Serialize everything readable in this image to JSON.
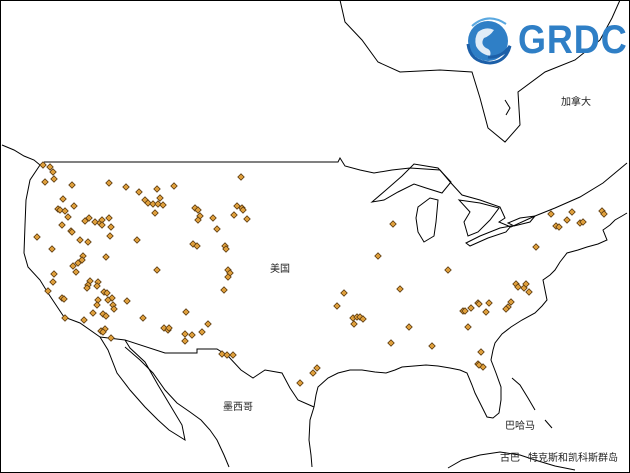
{
  "logo": {
    "text": "GRDC",
    "color": "#2f7fc6",
    "color_dark": "#1c5fa8"
  },
  "labels": {
    "canada": "加拿大",
    "usa": "美国",
    "mexico": "墨西哥",
    "bahamas": "巴哈马",
    "cuba": "古巴",
    "turks_caicos": "特克斯和凯科斯群岛"
  },
  "marker": {
    "shape": "diamond",
    "fill": "#e0a03c",
    "stroke": "#5a3a10"
  },
  "stations": [
    [
      -124.4,
      48.7
    ],
    [
      -123.7,
      48.5
    ],
    [
      -123.4,
      48.0
    ],
    [
      -123.3,
      47.3
    ],
    [
      -124.2,
      47.0
    ],
    [
      -121.5,
      46.7
    ],
    [
      -117.8,
      46.9
    ],
    [
      -116.1,
      46.5
    ],
    [
      -114.8,
      46.0
    ],
    [
      -113.0,
      46.3
    ],
    [
      -111.3,
      46.6
    ],
    [
      -104.6,
      47.5
    ],
    [
      -122.4,
      45.3
    ],
    [
      -121.3,
      44.6
    ],
    [
      -122.9,
      44.3
    ],
    [
      -122.7,
      44.2
    ],
    [
      -122.2,
      44.1
    ],
    [
      -121.9,
      43.5
    ],
    [
      -114.2,
      45.2
    ],
    [
      -113.9,
      44.9
    ],
    [
      -113.4,
      44.8
    ],
    [
      -112.9,
      44.8
    ],
    [
      -112.7,
      45.4
    ],
    [
      -112.4,
      44.7
    ],
    [
      -113.2,
      43.9
    ],
    [
      -109.2,
      44.4
    ],
    [
      -108.9,
      44.2
    ],
    [
      -108.7,
      43.6
    ],
    [
      -108.9,
      43.2
    ],
    [
      -107.4,
      43.4
    ],
    [
      -107.0,
      42.3
    ],
    [
      -105.0,
      44.6
    ],
    [
      -104.5,
      44.4
    ],
    [
      -104.4,
      44.2
    ],
    [
      -105.3,
      43.7
    ],
    [
      -104.0,
      43.3
    ],
    [
      -122.5,
      42.7
    ],
    [
      -120.2,
      43.1
    ],
    [
      -119.8,
      43.4
    ],
    [
      -119.2,
      43.0
    ],
    [
      -118.7,
      42.9
    ],
    [
      -118.5,
      43.2
    ],
    [
      -118.5,
      42.7
    ],
    [
      -117.8,
      43.4
    ],
    [
      -117.6,
      42.5
    ],
    [
      -121.6,
      42.1
    ],
    [
      -121.5,
      42.0
    ],
    [
      -125.0,
      41.5
    ],
    [
      -120.7,
      41.2
    ],
    [
      -119.9,
      41.0
    ],
    [
      -117.7,
      41.6
    ],
    [
      -115.0,
      41.2
    ],
    [
      -109.4,
      40.8
    ],
    [
      -109.0,
      40.6
    ],
    [
      -106.2,
      40.6
    ],
    [
      -106.1,
      40.3
    ],
    [
      -123.5,
      40.3
    ],
    [
      -118.1,
      39.5
    ],
    [
      -120.4,
      39.6
    ],
    [
      -120.5,
      39.2
    ],
    [
      -120.9,
      38.9
    ],
    [
      -121.4,
      38.6
    ],
    [
      -121.1,
      38.0
    ],
    [
      -113.0,
      38.2
    ],
    [
      -105.9,
      38.2
    ],
    [
      -105.7,
      37.9
    ],
    [
      -105.9,
      37.5
    ],
    [
      -123.3,
      37.8
    ],
    [
      -123.4,
      37.0
    ],
    [
      -123.9,
      36.1
    ],
    [
      -119.7,
      37.1
    ],
    [
      -119.9,
      36.7
    ],
    [
      -120.0,
      36.4
    ],
    [
      -118.9,
      37.0
    ],
    [
      -119.0,
      36.6
    ],
    [
      -106.3,
      36.2
    ],
    [
      -118.3,
      36.0
    ],
    [
      -118.0,
      35.9
    ],
    [
      -117.5,
      35.4
    ],
    [
      -117.9,
      35.2
    ],
    [
      -118.9,
      35.2
    ],
    [
      -117.4,
      34.7
    ],
    [
      -117.3,
      34.3
    ],
    [
      -119.0,
      34.7
    ],
    [
      -116.0,
      35.1
    ],
    [
      -122.5,
      35.4
    ],
    [
      -122.3,
      35.3
    ],
    [
      -119.4,
      33.9
    ],
    [
      -118.4,
      33.8
    ],
    [
      -118.1,
      33.6
    ],
    [
      -122.2,
      33.4
    ],
    [
      -120.3,
      33.2
    ],
    [
      -114.4,
      33.4
    ],
    [
      -110.1,
      34.0
    ],
    [
      -107.9,
      32.8
    ],
    [
      -112.3,
      32.4
    ],
    [
      -111.9,
      32.2
    ],
    [
      -111.8,
      32.4
    ],
    [
      -108.5,
      32.0
    ],
    [
      -110.2,
      31.8
    ],
    [
      -109.5,
      31.7
    ],
    [
      -110.2,
      31.1
    ],
    [
      -118.6,
      32.1
    ],
    [
      -118.2,
      32.3
    ],
    [
      -118.4,
      32.0
    ],
    [
      -117.6,
      31.4
    ],
    [
      -89.4,
      42.8
    ],
    [
      -90.9,
      39.6
    ],
    [
      -83.9,
      38.2
    ],
    [
      -88.7,
      36.3
    ],
    [
      -94.3,
      35.9
    ],
    [
      -95.0,
      34.6
    ],
    [
      -93.4,
      33.4
    ],
    [
      -93.0,
      33.5
    ],
    [
      -92.7,
      33.5
    ],
    [
      -92.4,
      33.3
    ],
    [
      -93.3,
      32.8
    ],
    [
      -87.8,
      32.5
    ],
    [
      -89.6,
      30.9
    ],
    [
      -85.5,
      30.6
    ],
    [
      -97.0,
      28.4
    ],
    [
      -97.4,
      27.9
    ],
    [
      -98.7,
      26.9
    ],
    [
      -106.5,
      29.8
    ],
    [
      -106.0,
      29.7
    ],
    [
      -105.4,
      29.7
    ],
    [
      -73.6,
      43.8
    ],
    [
      -71.5,
      44.0
    ],
    [
      -72.0,
      43.2
    ],
    [
      -73.1,
      42.6
    ],
    [
      -72.8,
      42.5
    ],
    [
      -70.7,
      42.9
    ],
    [
      -70.4,
      43.0
    ],
    [
      -68.5,
      44.1
    ],
    [
      -68.3,
      43.8
    ],
    [
      -75.1,
      40.5
    ],
    [
      -77.1,
      36.8
    ],
    [
      -76.9,
      36.5
    ],
    [
      -76.3,
      36.4
    ],
    [
      -76.1,
      36.8
    ],
    [
      -75.8,
      36.0
    ],
    [
      -77.6,
      35.0
    ],
    [
      -77.9,
      34.5
    ],
    [
      -78.1,
      34.3
    ],
    [
      -79.8,
      34.9
    ],
    [
      -80.9,
      34.9
    ],
    [
      -80.8,
      34.8
    ],
    [
      -81.6,
      34.4
    ],
    [
      -82.4,
      34.1
    ],
    [
      -82.2,
      34.1
    ],
    [
      -80.1,
      34.0
    ],
    [
      -81.9,
      32.5
    ],
    [
      -80.6,
      30.0
    ],
    [
      -80.9,
      28.8
    ],
    [
      -80.4,
      28.5
    ],
    [
      -80.8,
      28.7
    ]
  ]
}
